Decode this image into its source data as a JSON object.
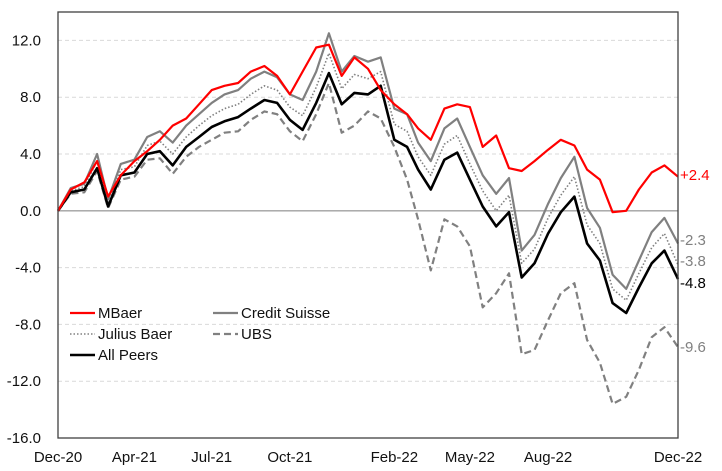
{
  "chart_data": {
    "type": "line",
    "title": "",
    "xlabel": "",
    "ylabel": "",
    "ylim": [
      -16,
      14
    ],
    "yticks": [
      "12.0",
      "8.0",
      "4.0",
      "0.0",
      "-4.0",
      "-8.0",
      "-12.0",
      "-16.0"
    ],
    "ytick_values": [
      12,
      8,
      4,
      0,
      -4,
      -8,
      -12,
      -16
    ],
    "xticks": [
      "Dec-20",
      "Apr-21",
      "Jul-21",
      "Oct-21",
      "Feb-22",
      "May-22",
      "Aug-22",
      "Dec-22"
    ],
    "xtick_dates": [
      "2020-12-31",
      "2021-03-31",
      "2021-06-30",
      "2021-09-30",
      "2022-01-31",
      "2022-04-30",
      "2022-07-31",
      "2022-12-31"
    ],
    "grid": "horizontal dashed",
    "legend_position": "lower-left",
    "dates": [
      "2020-12-31",
      "2021-01-15",
      "2021-01-31",
      "2021-02-15",
      "2021-02-28",
      "2021-03-15",
      "2021-03-31",
      "2021-04-15",
      "2021-04-30",
      "2021-05-15",
      "2021-05-31",
      "2021-06-15",
      "2021-06-30",
      "2021-07-15",
      "2021-07-31",
      "2021-08-15",
      "2021-08-31",
      "2021-09-15",
      "2021-09-30",
      "2021-10-15",
      "2021-10-31",
      "2021-11-15",
      "2021-11-30",
      "2021-12-15",
      "2021-12-31",
      "2022-01-15",
      "2022-01-31",
      "2022-02-15",
      "2022-02-28",
      "2022-03-15",
      "2022-03-31",
      "2022-04-15",
      "2022-04-30",
      "2022-05-15",
      "2022-05-31",
      "2022-06-15",
      "2022-06-30",
      "2022-07-15",
      "2022-07-31",
      "2022-08-15",
      "2022-08-31",
      "2022-09-15",
      "2022-09-30",
      "2022-10-15",
      "2022-10-31",
      "2022-11-15",
      "2022-11-30",
      "2022-12-15",
      "2022-12-31"
    ],
    "series": [
      {
        "name": "MBaer",
        "color": "#ff0000",
        "style": "solid",
        "width": 2.2,
        "end_label": "+2.4",
        "values": [
          0,
          1.5,
          2.0,
          3.5,
          1.0,
          2.5,
          3.5,
          4.2,
          5.0,
          6.0,
          6.5,
          7.5,
          8.5,
          8.8,
          9.0,
          9.8,
          10.2,
          9.5,
          8.2,
          9.8,
          11.5,
          11.7,
          9.5,
          10.8,
          10.0,
          8.5,
          7.5,
          6.8,
          5.8,
          5.0,
          7.2,
          7.5,
          7.3,
          4.5,
          5.3,
          3.0,
          2.8,
          3.5,
          4.3,
          5.0,
          4.6,
          2.9,
          2.2,
          -0.1,
          0.0,
          1.5,
          2.7,
          3.2,
          2.4
        ]
      },
      {
        "name": "Credit Suisse",
        "color": "#808080",
        "style": "solid",
        "width": 2.2,
        "end_label": "-2.3",
        "values": [
          0,
          1.6,
          1.9,
          4.0,
          0.8,
          3.3,
          3.6,
          5.2,
          5.6,
          4.8,
          6.0,
          6.8,
          7.6,
          8.2,
          8.5,
          9.3,
          9.8,
          9.4,
          8.2,
          7.8,
          9.8,
          12.5,
          9.8,
          10.9,
          10.5,
          10.8,
          7.2,
          6.8,
          4.8,
          3.5,
          5.8,
          6.5,
          4.5,
          2.5,
          1.2,
          2.3,
          -2.8,
          -1.7,
          0.5,
          2.3,
          3.8,
          0.2,
          -1.2,
          -4.5,
          -5.5,
          -3.5,
          -1.5,
          -0.5,
          -2.3
        ]
      },
      {
        "name": "Julius Baer",
        "color": "#808080",
        "style": "dotted",
        "width": 1.6,
        "end_label": "-3.8",
        "values": [
          0,
          1.4,
          1.7,
          3.5,
          0.5,
          2.9,
          3.1,
          4.6,
          4.9,
          4.0,
          5.2,
          6.0,
          6.7,
          7.2,
          7.5,
          8.2,
          8.8,
          8.5,
          7.3,
          6.7,
          8.7,
          11.1,
          8.6,
          9.6,
          9.3,
          9.8,
          6.1,
          5.6,
          3.8,
          2.5,
          4.7,
          5.3,
          3.3,
          1.4,
          0.0,
          1.1,
          -3.7,
          -2.7,
          -0.5,
          1.1,
          2.4,
          -1.0,
          -2.3,
          -5.5,
          -6.3,
          -4.4,
          -2.6,
          -1.6,
          -3.8
        ]
      },
      {
        "name": "UBS",
        "color": "#808080",
        "style": "dashed",
        "width": 2.2,
        "end_label": "-9.6",
        "values": [
          0,
          1.2,
          1.3,
          2.8,
          0.2,
          2.2,
          2.4,
          3.6,
          3.7,
          2.6,
          3.8,
          4.5,
          5.0,
          5.5,
          5.6,
          6.4,
          7.0,
          6.8,
          5.6,
          4.9,
          6.8,
          9.0,
          5.5,
          6.0,
          7.0,
          6.5,
          4.5,
          2.2,
          -0.6,
          -4.2,
          -0.6,
          -1.1,
          -2.5,
          -6.8,
          -5.8,
          -4.4,
          -10.1,
          -9.8,
          -7.7,
          -5.8,
          -5.1,
          -9.1,
          -10.7,
          -13.6,
          -13.1,
          -11.2,
          -8.9,
          -8.2,
          -9.6
        ]
      },
      {
        "name": "All Peers",
        "color": "#000000",
        "style": "solid",
        "width": 2.6,
        "end_label": "-4.8",
        "values": [
          0,
          1.3,
          1.5,
          3.0,
          0.3,
          2.5,
          2.7,
          4.0,
          4.2,
          3.2,
          4.5,
          5.2,
          5.9,
          6.3,
          6.6,
          7.2,
          7.8,
          7.6,
          6.4,
          5.7,
          7.6,
          9.7,
          7.5,
          8.3,
          8.2,
          8.8,
          5.0,
          4.5,
          2.9,
          1.5,
          3.6,
          4.1,
          2.2,
          0.3,
          -1.1,
          -0.1,
          -4.7,
          -3.7,
          -1.6,
          -0.1,
          1.0,
          -2.3,
          -3.5,
          -6.5,
          -7.2,
          -5.4,
          -3.7,
          -2.8,
          -4.8
        ]
      }
    ]
  }
}
